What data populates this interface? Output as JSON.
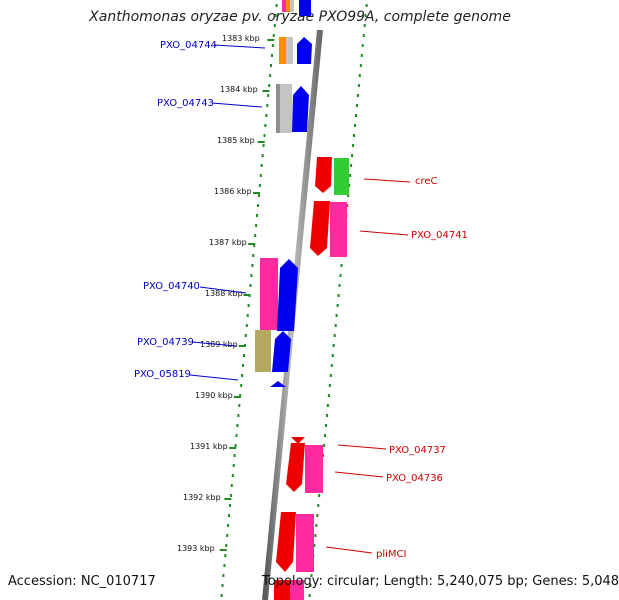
{
  "title": "Xanthomonas oryzae pv. oryzae PXO99A, complete genome",
  "footer": {
    "accession": "Accession: NC_010717",
    "summary": "Topology: circular; Length: 5,240,075 bp; Genes: 5,048"
  },
  "colors": {
    "backbone": "#8a8a8a",
    "tick": "#1e8c1e",
    "left_label": "#0000c8",
    "right_label": "#d00000",
    "blue": "#0000ee",
    "red": "#ee0000",
    "pink": "#ff2a9d",
    "green": "#33cc33",
    "gray": "#c4c4c4",
    "orange": "#ff8c00",
    "olive": "#b5a860"
  },
  "scale": {
    "ticks": [
      {
        "label": "1383 kbp",
        "kbp": 1383
      },
      {
        "label": "1384 kbp",
        "kbp": 1384
      },
      {
        "label": "1385 kbp",
        "kbp": 1385
      },
      {
        "label": "1386 kbp",
        "kbp": 1386
      },
      {
        "label": "1387 kbp",
        "kbp": 1387
      },
      {
        "label": "1388 kbp",
        "kbp": 1388
      },
      {
        "label": "1389 kbp",
        "kbp": 1389
      },
      {
        "label": "1390 kbp",
        "kbp": 1390
      },
      {
        "label": "1391 kbp",
        "kbp": 1391
      },
      {
        "label": "1392 kbp",
        "kbp": 1392
      },
      {
        "label": "1393 kbp",
        "kbp": 1393
      }
    ]
  },
  "genes": [
    {
      "id": "PXO_04744",
      "strand": "left",
      "labelled": true
    },
    {
      "id": "PXO_04743",
      "strand": "left",
      "labelled": true
    },
    {
      "id": "creC",
      "strand": "right",
      "labelled": true
    },
    {
      "id": "PXO_04741",
      "strand": "right",
      "labelled": true
    },
    {
      "id": "PXO_04740",
      "strand": "left",
      "labelled": true
    },
    {
      "id": "PXO_04739",
      "strand": "left",
      "labelled": true
    },
    {
      "id": "PXO_05819",
      "strand": "left",
      "labelled": true
    },
    {
      "id": "PXO_04737",
      "strand": "right",
      "labelled": true
    },
    {
      "id": "PXO_04736",
      "strand": "right",
      "labelled": true
    },
    {
      "id": "pliMCI",
      "strand": "right",
      "labelled": true
    }
  ]
}
